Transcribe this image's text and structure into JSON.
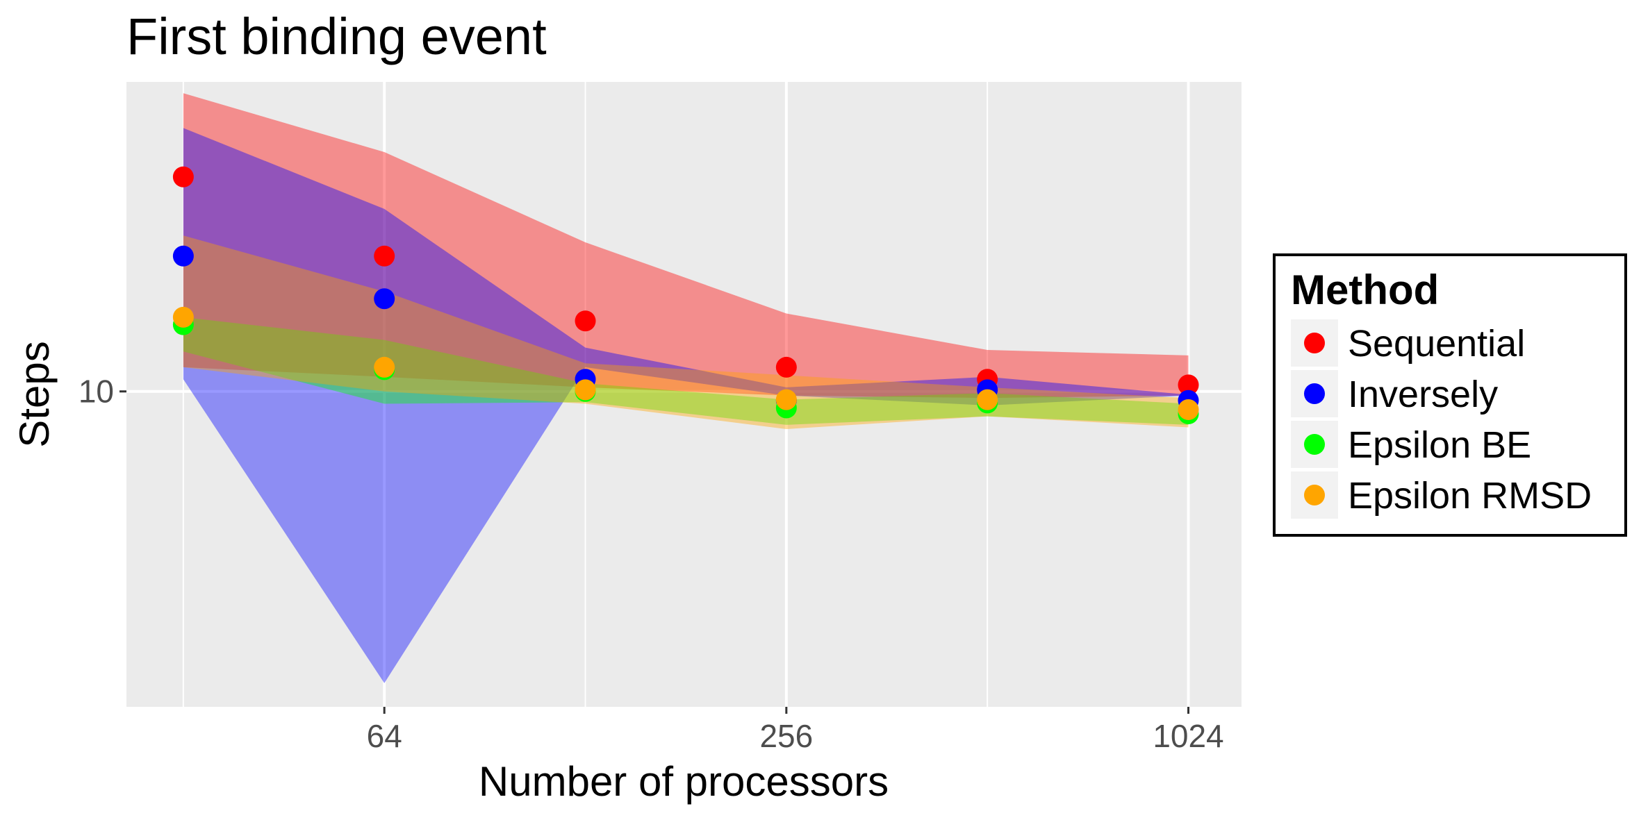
{
  "chart_data": {
    "type": "scatter",
    "title": "First binding event",
    "xlabel": "Number of processors",
    "ylabel": "Steps",
    "x_scale": "log2",
    "y_scale": "log10",
    "xlim": [
      26.3,
      1230
    ],
    "ylim": [
      6.8,
      14.6
    ],
    "x_ticks": [
      64,
      256,
      1024
    ],
    "x_tick_labels": [
      "64",
      "256",
      "1024"
    ],
    "y_ticks": [
      10
    ],
    "y_tick_labels": [
      "10"
    ],
    "grid": true,
    "legend": {
      "title": "Method",
      "position": "right"
    },
    "x": [
      32,
      64,
      128,
      256,
      512,
      1024
    ],
    "series": [
      {
        "name": "Sequential",
        "color": "#FF0000",
        "values": [
          13.0,
          11.8,
          10.9,
          10.3,
          10.15,
          10.08
        ],
        "band_upper": [
          14.4,
          13.4,
          12.0,
          11.0,
          10.52,
          10.45
        ],
        "band_lower": [
          10.3,
          10.18,
          10.05,
          9.95,
          9.92,
          9.95
        ]
      },
      {
        "name": "Inversely",
        "color": "#0000FF",
        "values": [
          11.8,
          11.2,
          10.15,
          9.89,
          10.02,
          9.89
        ],
        "band_upper": [
          13.8,
          12.5,
          10.55,
          10.05,
          10.18,
          9.96
        ],
        "band_lower": [
          10.15,
          7.0,
          10.3,
          9.95,
          9.83,
          9.95
        ]
      },
      {
        "name": "Epsilon BE",
        "color": "#00FF00",
        "values": [
          10.85,
          10.27,
          10.0,
          9.8,
          9.86,
          9.73
        ],
        "band_upper": [
          10.95,
          10.65,
          10.1,
          9.9,
          9.98,
          9.85
        ],
        "band_lower": [
          10.5,
          9.85,
          9.87,
          9.6,
          9.7,
          9.6
        ]
      },
      {
        "name": "Epsilon RMSD",
        "color": "#FFA500",
        "values": [
          10.95,
          10.3,
          10.02,
          9.9,
          9.9,
          9.78
        ],
        "band_upper": [
          12.1,
          11.3,
          10.35,
          10.2,
          10.05,
          9.92
        ],
        "band_lower": [
          10.3,
          10.0,
          9.85,
          9.55,
          9.7,
          9.57
        ]
      }
    ]
  }
}
